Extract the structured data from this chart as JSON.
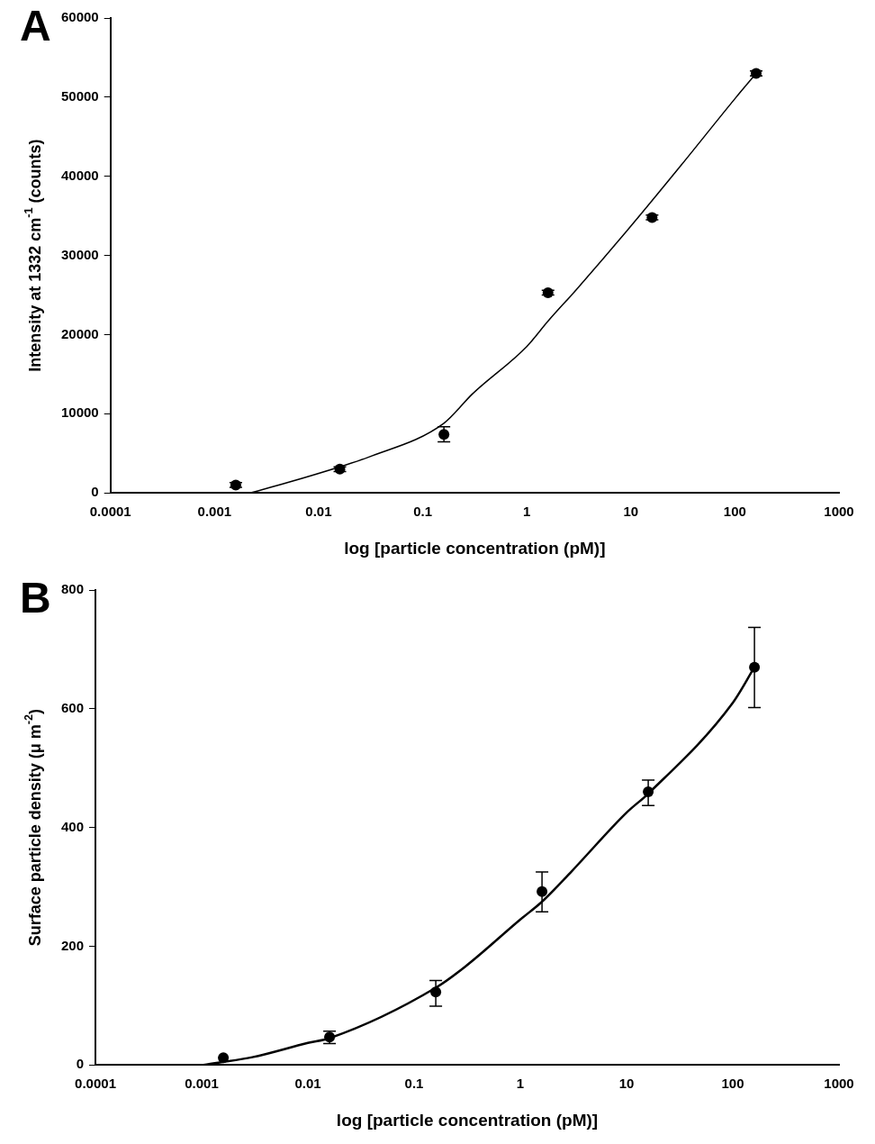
{
  "chart_data": [
    {
      "type": "scatter",
      "title": "A",
      "xlabel": "log [particle concentration (pM)]",
      "ylabel": "Intensity at 1332 cm$^{-1}$ (counts)",
      "log": "x",
      "grid": false,
      "legend": false,
      "marker": "circle",
      "xlim": [
        0.0001,
        1000
      ],
      "xticks": [
        0.0001,
        0.001,
        0.01,
        0.1,
        1,
        10,
        100,
        1000
      ],
      "ylim": [
        0,
        60000
      ],
      "yticks": [
        0,
        10000,
        20000,
        30000,
        40000,
        50000,
        60000
      ],
      "series": [
        {
          "color": "#000000",
          "x": [
            0.0016,
            0.016,
            0.16,
            1.6,
            16,
            160
          ],
          "values": [
            1000,
            3000,
            7400,
            25300,
            34800,
            53000
          ],
          "errors": [
            300,
            300,
            950,
            300,
            300,
            300
          ]
        },
        {
          "type": "line",
          "color": "#000000",
          "marker": "none",
          "line_style": "solid",
          "x": [
            0.0022,
            0.005,
            0.016,
            0.03,
            0.16,
            0.3,
            1,
            1.6,
            3,
            10,
            30,
            100,
            160
          ],
          "values": [
            0,
            1300,
            3300,
            4500,
            8800,
            12500,
            18500,
            21700,
            25700,
            33700,
            41300,
            49800,
            53000
          ]
        }
      ]
    },
    {
      "type": "scatter",
      "title": "B",
      "xlabel": "log [particle concentration (pM)]",
      "ylabel": "Surface particle density (μ m$^{-2}$)",
      "log": "x",
      "grid": false,
      "legend": false,
      "marker": "circle",
      "xlim": [
        0.0001,
        1000
      ],
      "xticks": [
        0.0001,
        0.001,
        0.01,
        0.1,
        1,
        10,
        100,
        1000
      ],
      "ylim": [
        0,
        800
      ],
      "yticks": [
        0,
        200,
        400,
        600,
        800
      ],
      "series": [
        {
          "color": "#000000",
          "x": [
            0.0016,
            0.016,
            0.16,
            1.6,
            16,
            160
          ],
          "values": [
            12,
            47,
            123,
            292,
            460,
            670
          ],
          "errors": [
            null,
            [
              36,
              57
            ],
            [
              99,
              142
            ],
            [
              258,
              325
            ],
            [
              437,
              480
            ],
            [
              602,
              737
            ]
          ]
        },
        {
          "type": "line",
          "color": "#000000",
          "marker": "none",
          "line_style": "solid",
          "x": [
            0.00104,
            0.003,
            0.01,
            0.016,
            0.16,
            0.3,
            1,
            1.6,
            3,
            10,
            16,
            100,
            160
          ],
          "values": [
            0,
            13,
            37,
            45,
            130,
            165,
            245,
            275,
            325,
            425,
            457,
            610,
            670
          ]
        }
      ]
    }
  ]
}
